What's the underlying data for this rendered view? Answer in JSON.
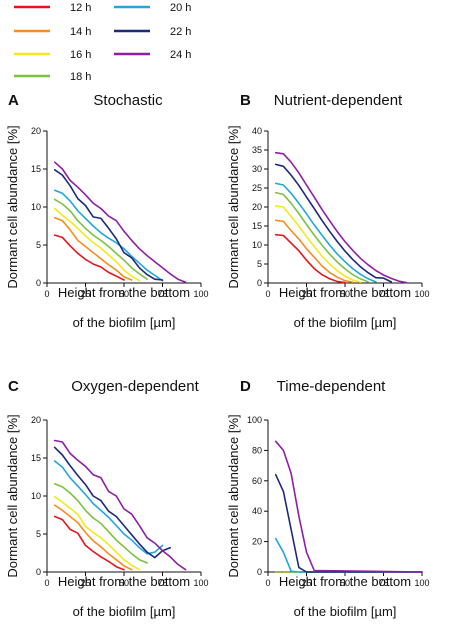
{
  "legend": {
    "items": [
      {
        "label": "12 h",
        "color": "#e8141c"
      },
      {
        "label": "14 h",
        "color": "#f68d1f"
      },
      {
        "label": "16 h",
        "color": "#f2ea1a"
      },
      {
        "label": "18 h",
        "color": "#7cc242"
      },
      {
        "label": "20 h",
        "color": "#22a6e0"
      },
      {
        "label": "22 h",
        "color": "#1d2a7c"
      },
      {
        "label": "24 h",
        "color": "#8e1fa3"
      }
    ]
  },
  "chart_data": [
    {
      "type": "line",
      "panel": "A",
      "title": "Stochastic",
      "xlabel": [
        "Height from the bottom",
        "of the biofilm [µm]"
      ],
      "ylabel": "Dormant cell abundance [%]",
      "xlim": [
        0,
        100
      ],
      "ylim": [
        0,
        20
      ],
      "xticks": [
        0,
        25,
        50,
        75,
        100
      ],
      "yticks": [
        0,
        5,
        10,
        15,
        20
      ],
      "series": [
        {
          "name": "12 h",
          "color": "#e8141c",
          "x": [
            5,
            10,
            15,
            20,
            25,
            30,
            35,
            40,
            45,
            50
          ],
          "y": [
            6.3,
            6.0,
            4.9,
            3.9,
            3.1,
            2.5,
            2.1,
            1.4,
            0.9,
            0.4
          ]
        },
        {
          "name": "14 h",
          "color": "#f68d1f",
          "x": [
            5,
            10,
            15,
            20,
            25,
            30,
            35,
            40,
            45,
            50,
            55
          ],
          "y": [
            8.6,
            8.2,
            7.0,
            5.6,
            4.8,
            4.0,
            3.2,
            2.4,
            1.7,
            0.8,
            0.4
          ]
        },
        {
          "name": "16 h",
          "color": "#f2ea1a",
          "x": [
            5,
            10,
            15,
            20,
            25,
            30,
            35,
            40,
            45,
            50,
            55,
            60
          ],
          "y": [
            9.8,
            8.9,
            8.1,
            7.2,
            6.2,
            5.3,
            4.6,
            3.7,
            2.8,
            1.7,
            0.9,
            0.3
          ]
        },
        {
          "name": "18 h",
          "color": "#7cc242",
          "x": [
            5,
            10,
            15,
            20,
            25,
            30,
            35,
            40,
            45,
            50,
            55,
            60,
            65
          ],
          "y": [
            11.0,
            10.4,
            9.5,
            8.2,
            7.2,
            6.3,
            5.6,
            4.8,
            3.9,
            3.0,
            2.0,
            1.2,
            0.5
          ]
        },
        {
          "name": "20 h",
          "color": "#22a6e0",
          "x": [
            5,
            10,
            15,
            20,
            25,
            30,
            35,
            40,
            45,
            50,
            55,
            60,
            65,
            70,
            75
          ],
          "y": [
            12.2,
            11.8,
            10.8,
            9.5,
            8.5,
            7.5,
            6.6,
            5.9,
            5.3,
            4.5,
            3.5,
            2.6,
            1.7,
            1.0,
            0.3
          ]
        },
        {
          "name": "22 h",
          "color": "#1d2a7c",
          "x": [
            5,
            10,
            15,
            20,
            25,
            30,
            35,
            40,
            45,
            50,
            55,
            60,
            65,
            70,
            75
          ],
          "y": [
            14.9,
            14.2,
            12.8,
            11.1,
            10.2,
            8.7,
            8.5,
            7.2,
            5.8,
            4.0,
            3.3,
            2.0,
            1.1,
            0.5,
            0.4
          ]
        },
        {
          "name": "24 h",
          "color": "#8e1fa3",
          "x": [
            5,
            10,
            15,
            20,
            25,
            30,
            35,
            40,
            45,
            50,
            55,
            60,
            65,
            70,
            75,
            80,
            85,
            90
          ],
          "y": [
            15.9,
            15.0,
            13.5,
            12.6,
            11.6,
            10.5,
            9.8,
            8.8,
            8.2,
            6.8,
            5.6,
            4.5,
            3.6,
            2.8,
            2.0,
            1.2,
            0.5,
            0.1
          ]
        }
      ]
    },
    {
      "type": "line",
      "panel": "B",
      "title": "Nutrient-dependent",
      "xlabel": [
        "Height from the bottom",
        "of the biofilm [µm]"
      ],
      "ylabel": "Dormant cell abundance [%]",
      "xlim": [
        0,
        100
      ],
      "ylim": [
        0,
        40
      ],
      "xticks": [
        0,
        25,
        50,
        75,
        100
      ],
      "yticks": [
        0,
        5,
        10,
        15,
        20,
        25,
        30,
        35,
        40
      ],
      "series": [
        {
          "name": "12 h",
          "color": "#e8141c",
          "x": [
            5,
            10,
            15,
            20,
            25,
            30,
            35,
            40,
            45,
            50
          ],
          "y": [
            12.7,
            12.5,
            10.5,
            8.5,
            6.0,
            3.8,
            2.2,
            1.1,
            0.4,
            0.1
          ]
        },
        {
          "name": "14 h",
          "color": "#f68d1f",
          "x": [
            5,
            10,
            15,
            20,
            25,
            30,
            35,
            40,
            45,
            50,
            55
          ],
          "y": [
            16.5,
            16.2,
            13.8,
            11.6,
            9.0,
            6.8,
            4.5,
            2.8,
            1.5,
            0.6,
            0.2
          ]
        },
        {
          "name": "16 h",
          "color": "#f2ea1a",
          "x": [
            5,
            10,
            15,
            20,
            25,
            30,
            35,
            40,
            45,
            50,
            55,
            60
          ],
          "y": [
            20.3,
            20.0,
            17.5,
            15.0,
            12.2,
            9.6,
            7.1,
            5.0,
            3.2,
            1.8,
            0.8,
            0.2
          ]
        },
        {
          "name": "18 h",
          "color": "#7cc242",
          "x": [
            5,
            10,
            15,
            20,
            25,
            30,
            35,
            40,
            45,
            50,
            55,
            60,
            65
          ],
          "y": [
            23.8,
            23.3,
            21.0,
            18.3,
            15.4,
            12.6,
            10.0,
            7.6,
            5.5,
            3.7,
            2.2,
            1.1,
            0.3
          ]
        },
        {
          "name": "20 h",
          "color": "#22a6e0",
          "x": [
            5,
            10,
            15,
            20,
            25,
            30,
            35,
            40,
            45,
            50,
            55,
            60,
            65,
            70
          ],
          "y": [
            26.2,
            25.8,
            23.6,
            21.0,
            18.2,
            15.3,
            12.6,
            10.0,
            7.6,
            5.6,
            3.8,
            2.3,
            1.1,
            0.3
          ]
        },
        {
          "name": "22 h",
          "color": "#1d2a7c",
          "x": [
            5,
            10,
            15,
            20,
            25,
            30,
            35,
            40,
            45,
            50,
            55,
            60,
            65,
            70,
            75,
            80
          ],
          "y": [
            31.2,
            30.7,
            28.4,
            25.7,
            22.6,
            19.6,
            16.5,
            13.6,
            10.9,
            8.4,
            6.2,
            4.3,
            2.7,
            1.4,
            1.3,
            0.3
          ]
        },
        {
          "name": "24 h",
          "color": "#8e1fa3",
          "x": [
            5,
            10,
            15,
            20,
            25,
            30,
            35,
            40,
            45,
            50,
            55,
            60,
            65,
            70,
            75,
            80,
            85,
            90
          ],
          "y": [
            34.3,
            34.0,
            31.8,
            29.0,
            25.8,
            22.6,
            19.4,
            16.4,
            13.5,
            10.9,
            8.6,
            6.5,
            4.8,
            3.3,
            2.1,
            1.2,
            0.5,
            0.1
          ]
        }
      ]
    },
    {
      "type": "line",
      "panel": "C",
      "title": "Oxygen-dependent",
      "xlabel": [
        "Height from the bottom",
        "of the biofilm [µm]"
      ],
      "ylabel": "Dormant cell abundance [%]",
      "xlim": [
        0,
        100
      ],
      "ylim": [
        0,
        20
      ],
      "xticks": [
        0,
        25,
        50,
        75,
        100
      ],
      "yticks": [
        0,
        5,
        10,
        15,
        20
      ],
      "series": [
        {
          "name": "12 h",
          "color": "#e8141c",
          "x": [
            5,
            10,
            15,
            20,
            25,
            30,
            35,
            40,
            45,
            50
          ],
          "y": [
            7.3,
            6.9,
            5.6,
            5.1,
            3.5,
            2.7,
            2.0,
            1.4,
            0.7,
            0.3
          ]
        },
        {
          "name": "14 h",
          "color": "#f68d1f",
          "x": [
            5,
            10,
            15,
            20,
            25,
            30,
            35,
            40,
            45,
            50,
            55
          ],
          "y": [
            8.8,
            8.1,
            7.3,
            6.5,
            5.2,
            4.1,
            3.3,
            2.4,
            1.6,
            0.8,
            0.3
          ]
        },
        {
          "name": "16 h",
          "color": "#f2ea1a",
          "x": [
            5,
            10,
            15,
            20,
            25,
            30,
            35,
            40,
            45,
            50,
            55,
            60
          ],
          "y": [
            9.9,
            9.2,
            8.4,
            7.6,
            6.0,
            5.2,
            4.5,
            3.6,
            2.6,
            1.6,
            0.9,
            0.3
          ]
        },
        {
          "name": "18 h",
          "color": "#7cc242",
          "x": [
            5,
            10,
            15,
            20,
            25,
            30,
            35,
            40,
            45,
            50,
            55,
            60,
            65
          ],
          "y": [
            11.6,
            11.2,
            10.4,
            9.4,
            8.1,
            7.1,
            6.4,
            5.3,
            4.2,
            3.3,
            2.4,
            1.6,
            1.2
          ]
        },
        {
          "name": "20 h",
          "color": "#22a6e0",
          "x": [
            5,
            10,
            15,
            20,
            25,
            30,
            35,
            40,
            45,
            50,
            55,
            60,
            65,
            70,
            75
          ],
          "y": [
            14.6,
            13.8,
            12.4,
            11.3,
            10.2,
            9.0,
            8.1,
            7.2,
            6.1,
            5.0,
            4.2,
            3.2,
            2.4,
            2.6,
            3.5
          ]
        },
        {
          "name": "22 h",
          "color": "#1d2a7c",
          "x": [
            5,
            10,
            15,
            20,
            25,
            30,
            35,
            40,
            45,
            50,
            55,
            60,
            65,
            70,
            75,
            80
          ],
          "y": [
            16.4,
            15.4,
            14.0,
            12.7,
            11.5,
            10.0,
            9.4,
            8.0,
            7.3,
            6.1,
            4.9,
            3.7,
            2.6,
            1.9,
            2.8,
            3.2
          ]
        },
        {
          "name": "24 h",
          "color": "#8e1fa3",
          "x": [
            5,
            10,
            15,
            20,
            25,
            30,
            35,
            40,
            45,
            50,
            55,
            60,
            65,
            70,
            75,
            80,
            85,
            90
          ],
          "y": [
            17.3,
            17.1,
            15.6,
            14.7,
            13.9,
            12.8,
            12.4,
            10.6,
            10.0,
            8.3,
            7.6,
            6.1,
            4.5,
            3.8,
            2.8,
            2.0,
            1.0,
            0.3
          ]
        }
      ]
    },
    {
      "type": "line",
      "panel": "D",
      "title": "Time-dependent",
      "xlabel": [
        "Height from the bottom",
        "of the biofilm [µm]"
      ],
      "ylabel": "Dormant cell abundance [%]",
      "xlim": [
        0,
        100
      ],
      "ylim": [
        0,
        100
      ],
      "xticks": [
        0,
        25,
        50,
        75,
        100
      ],
      "yticks": [
        0,
        20,
        40,
        60,
        80,
        100
      ],
      "series": [
        {
          "name": "12 h",
          "color": "#e8141c",
          "x": [
            5,
            100
          ],
          "y": [
            0,
            0
          ]
        },
        {
          "name": "14 h",
          "color": "#f68d1f",
          "x": [
            5,
            100
          ],
          "y": [
            0,
            0
          ]
        },
        {
          "name": "16 h",
          "color": "#f2ea1a",
          "x": [
            5,
            100
          ],
          "y": [
            0,
            0
          ]
        },
        {
          "name": "18 h",
          "color": "#7cc242",
          "x": [
            5,
            100
          ],
          "y": [
            0,
            0
          ]
        },
        {
          "name": "20 h",
          "color": "#22a6e0",
          "x": [
            5,
            10,
            15,
            20,
            100
          ],
          "y": [
            22,
            13,
            0.5,
            0,
            0
          ]
        },
        {
          "name": "22 h",
          "color": "#1d2a7c",
          "x": [
            5,
            10,
            15,
            20,
            25,
            100
          ],
          "y": [
            64,
            53,
            28,
            3,
            0,
            0
          ]
        },
        {
          "name": "24 h",
          "color": "#8e1fa3",
          "x": [
            5,
            10,
            15,
            20,
            25,
            30,
            100
          ],
          "y": [
            86,
            80,
            65,
            37,
            13,
            1,
            0
          ]
        }
      ]
    }
  ]
}
